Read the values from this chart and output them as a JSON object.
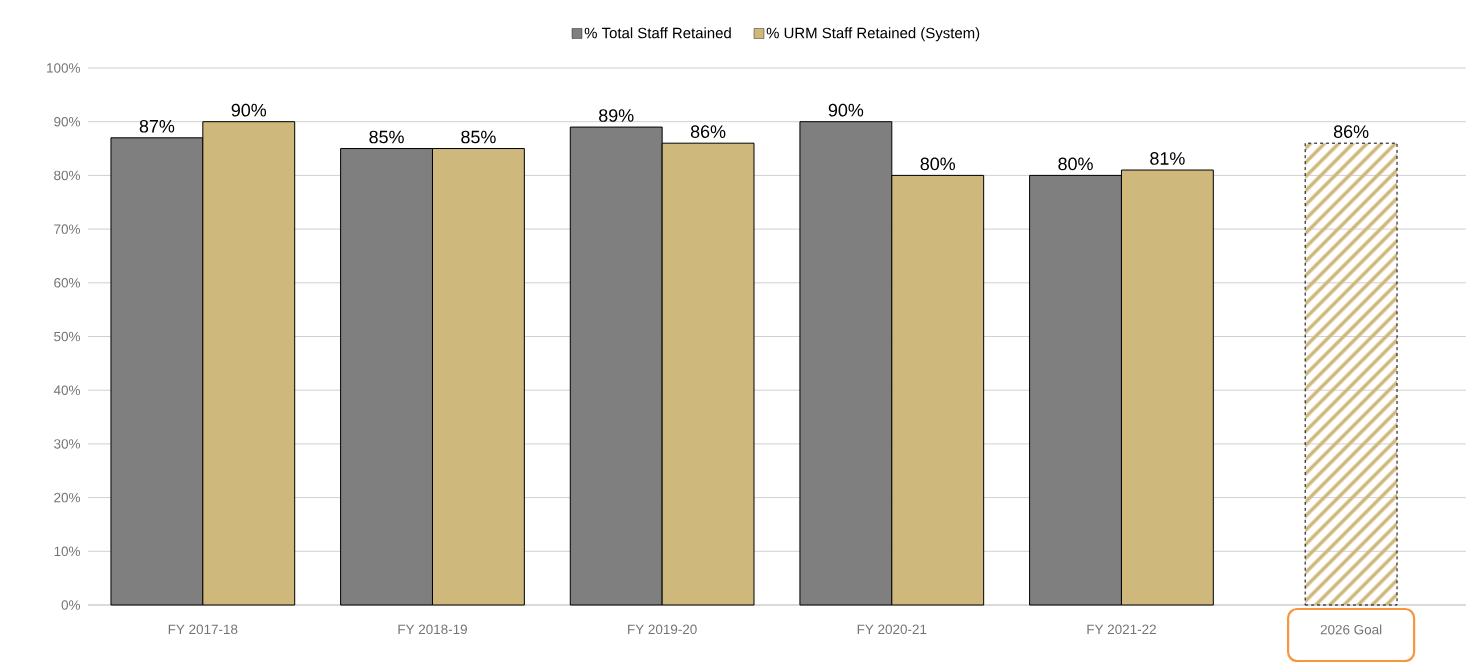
{
  "chart_data": {
    "type": "bar",
    "categories": [
      "FY 2017-18",
      "FY 2018-19",
      "FY 2019-20",
      "FY 2020-21",
      "FY 2021-22",
      "2026 Goal"
    ],
    "series": [
      {
        "name": "% Total Staff Retained",
        "color": "#7f7f7f",
        "values": [
          87,
          85,
          89,
          90,
          80,
          null
        ],
        "value_labels": [
          "87%",
          "85%",
          "89%",
          "90%",
          "80%",
          null
        ]
      },
      {
        "name": "% URM Staff Retained (System)",
        "color": "#cfb87c",
        "values": [
          90,
          85,
          86,
          80,
          81,
          null
        ],
        "value_labels": [
          "90%",
          "85%",
          "86%",
          "80%",
          "81%",
          null
        ]
      },
      {
        "color": "#cfb87c",
        "line_style": "dashed",
        "values": [
          null,
          null,
          null,
          null,
          null,
          86
        ],
        "value_labels": [
          null,
          null,
          null,
          null,
          null,
          "86%"
        ]
      }
    ],
    "ylim": [
      0,
      100
    ],
    "yticks": [
      {
        "value": 0,
        "label": "0%"
      },
      {
        "value": 10,
        "label": "10%"
      },
      {
        "value": 20,
        "label": "20%"
      },
      {
        "value": 30,
        "label": "30%"
      },
      {
        "value": 40,
        "label": "40%"
      },
      {
        "value": 50,
        "label": "50%"
      },
      {
        "value": 60,
        "label": "60%"
      },
      {
        "value": 70,
        "label": "70%"
      },
      {
        "value": 80,
        "label": "80%"
      },
      {
        "value": 90,
        "label": "90%"
      },
      {
        "value": 100,
        "label": "100%"
      }
    ],
    "grid": "y",
    "legend": "top"
  }
}
